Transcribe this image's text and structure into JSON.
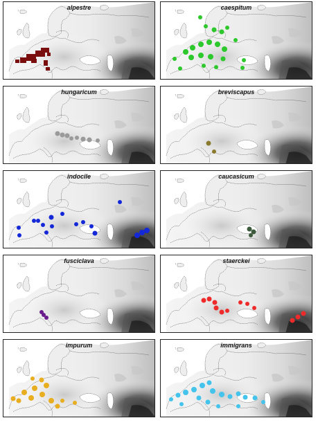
{
  "figure": {
    "panels": [
      {
        "id": "alpestre",
        "title": "alpestre",
        "color": "#7a0e0e"
      },
      {
        "id": "caespitum",
        "title": "caespitum",
        "color": "#2cc82c"
      },
      {
        "id": "hungaricum",
        "title": "hungaricum",
        "color": "#9a9a9a"
      },
      {
        "id": "breviscapus",
        "title": "breviscapus",
        "color": "#8a7a2e"
      },
      {
        "id": "indocile",
        "title": "indocile",
        "color": "#1428d8"
      },
      {
        "id": "caucasicum",
        "title": "caucasicum",
        "color": "#3c5a3c"
      },
      {
        "id": "fusciclava",
        "title": "fusciclava",
        "color": "#6a1c8c"
      },
      {
        "id": "staerckei",
        "title": "staerckei",
        "color": "#ee2a2a"
      },
      {
        "id": "impurum",
        "title": "impurum",
        "color": "#e8ae20"
      },
      {
        "id": "immigrans",
        "title": "immigrans",
        "color": "#44c4ec"
      }
    ]
  }
}
